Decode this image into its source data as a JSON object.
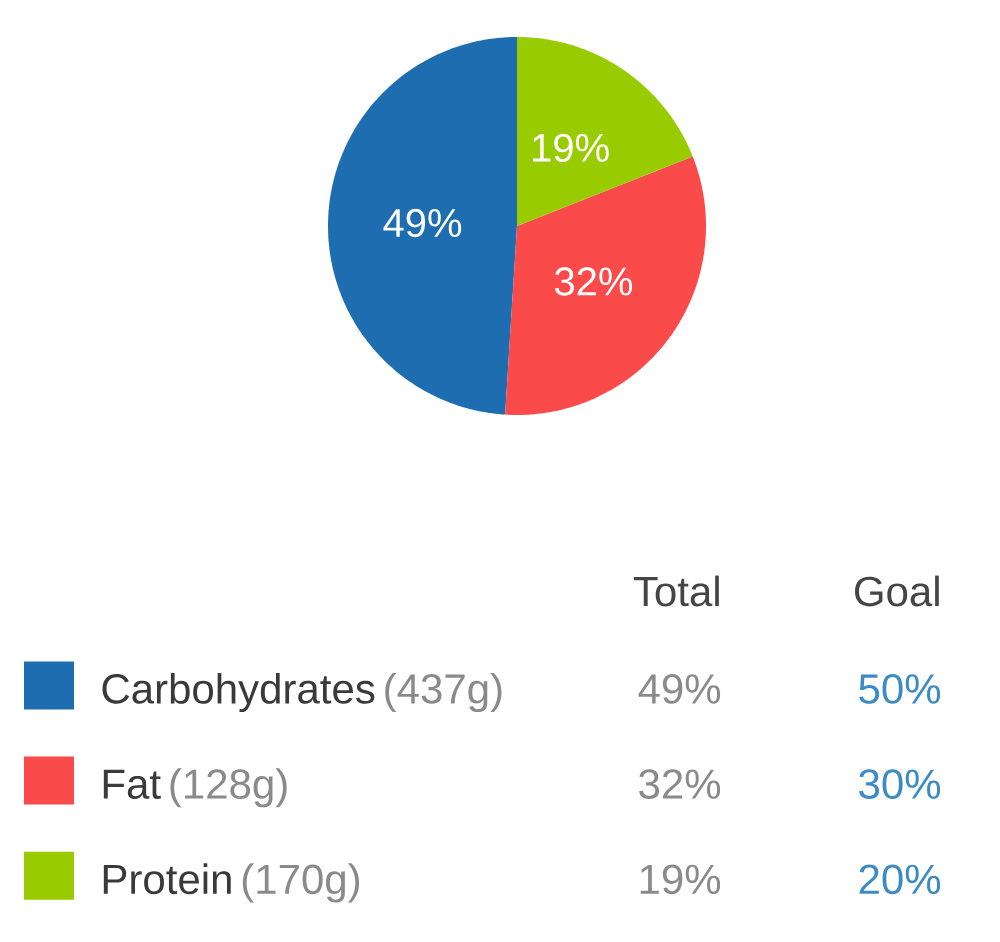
{
  "chart_data": {
    "type": "pie",
    "categories": [
      "Carbohydrates",
      "Fat",
      "Protein"
    ],
    "values": [
      49,
      32,
      19
    ],
    "colors": [
      "#1f6db1",
      "#fb4a4a",
      "#99cc00"
    ],
    "value_labels": [
      "49%",
      "32%",
      "19%"
    ],
    "legend": "bottom",
    "annotations": [
      "Total",
      "Goal",
      {
        "text": "(437g)",
        "x": "Carbohydrates"
      },
      {
        "text": "(128g)",
        "x": "Fat"
      },
      {
        "text": "(170g)",
        "x": "Protein"
      },
      {
        "text": "50%",
        "x": "Carbohydrates"
      },
      {
        "text": "30%",
        "x": "Fat"
      },
      {
        "text": "20%",
        "x": "Protein"
      }
    ]
  }
}
